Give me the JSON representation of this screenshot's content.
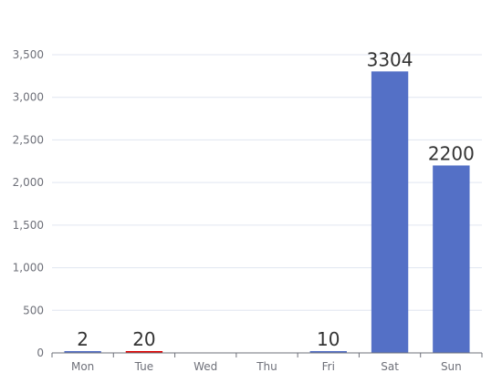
{
  "chart_data": {
    "type": "bar",
    "categories": [
      "Mon",
      "Tue",
      "Wed",
      "Thu",
      "Fri",
      "Sat",
      "Sun"
    ],
    "values": [
      2,
      20,
      0,
      0,
      10,
      3304,
      2200
    ],
    "data_labels": [
      "2",
      "20",
      "",
      "",
      "10",
      "3304",
      "2200"
    ],
    "bar_colors": [
      "#5470c6",
      "#e00000",
      "#5470c6",
      "#5470c6",
      "#5470c6",
      "#5470c6",
      "#5470c6"
    ],
    "ylim": [
      0,
      3500
    ],
    "y_ticks": [
      0,
      500,
      1000,
      1500,
      2000,
      2500,
      3000,
      3500
    ],
    "y_tick_labels": [
      "0",
      "500",
      "1,000",
      "1,500",
      "2,000",
      "2,500",
      "3,000",
      "3,500"
    ],
    "title": "",
    "xlabel": "",
    "ylabel": "",
    "grid": true,
    "legend": "none",
    "colors": {
      "bar": "#5470c6",
      "highlight": "#e00000",
      "grid": "#e0e6f1",
      "axis": "#6e7079"
    }
  }
}
